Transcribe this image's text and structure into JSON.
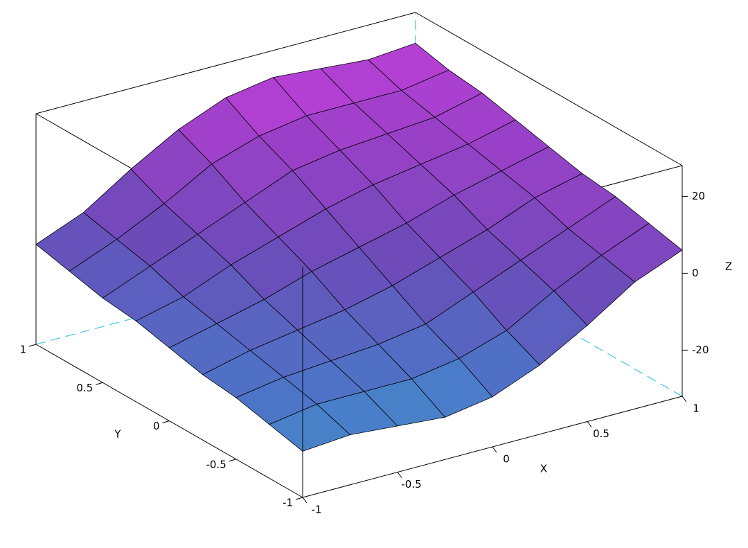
{
  "chart_data": {
    "type": "surface",
    "x": [
      -1,
      -0.75,
      -0.5,
      -0.25,
      0,
      0.25,
      0.5,
      0.75,
      1
    ],
    "y": [
      -1,
      -0.75,
      -0.5,
      -0.25,
      0,
      0.25,
      0.5,
      0.75,
      1
    ],
    "z": [
      [
        -20,
        -19,
        -20,
        -21,
        -19,
        -14,
        -7,
        1,
        6
      ],
      [
        -18,
        -16,
        -16,
        -16,
        -14,
        -10,
        -3,
        3,
        8
      ],
      [
        -16,
        -14,
        -13,
        -12,
        -10,
        -5,
        0,
        5,
        10
      ],
      [
        -15,
        -12,
        -10,
        -8,
        -5,
        -1,
        3,
        8,
        11
      ],
      [
        -13,
        -10,
        -7,
        -3,
        0,
        3,
        7,
        10,
        13
      ],
      [
        -11,
        -8,
        -3,
        1,
        5,
        8,
        10,
        12,
        15
      ],
      [
        -10,
        -5,
        0,
        5,
        10,
        12,
        13,
        14,
        17
      ],
      [
        -8,
        -3,
        3,
        10,
        14,
        16,
        16,
        16,
        18
      ],
      [
        -6,
        -1,
        7,
        14,
        19,
        21,
        20,
        19,
        20
      ]
    ],
    "xlim": [
      -1,
      1
    ],
    "ylim": [
      -1,
      1
    ],
    "zlim": [
      -32,
      28
    ],
    "xticks": [
      -1,
      -0.5,
      0,
      0.5,
      1
    ],
    "yticks": [
      -1,
      -0.5,
      0,
      0.5,
      1
    ],
    "zticks": [
      -20,
      0,
      20
    ],
    "xlabel": "X",
    "ylabel": "Y",
    "zlabel": "Z",
    "colormap": [
      "#3fe6d8",
      "#4a78c8",
      "#6a4cb8",
      "#9a40c8",
      "#e040e8"
    ],
    "mesh": true
  }
}
